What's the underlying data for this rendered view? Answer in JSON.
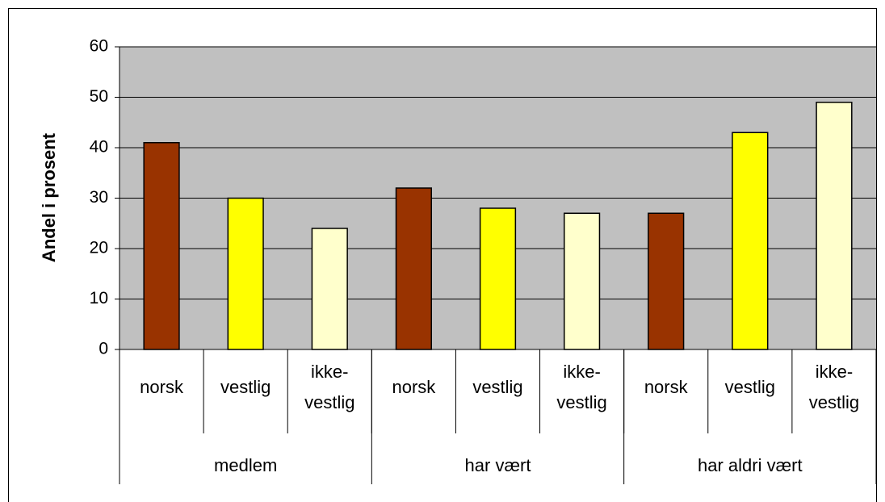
{
  "chart_data": {
    "type": "bar",
    "y_label": "Andel i prosent",
    "categories": [
      "norsk",
      "vestlig",
      "ikke-vestlig",
      "norsk",
      "vestlig",
      "ikke-vestlig",
      "norsk",
      "vestlig",
      "ikke-vestlig"
    ],
    "groups": [
      "medlem",
      "har vært",
      "har aldri vært"
    ],
    "values": [
      41,
      30,
      24,
      32,
      28,
      27,
      27,
      43,
      49
    ],
    "colors": [
      "#993300",
      "#ffff00",
      "#ffffcc",
      "#993300",
      "#ffff00",
      "#ffffcc",
      "#993300",
      "#ffff00",
      "#ffffcc"
    ],
    "ylim": [
      0,
      60
    ],
    "yticks": [
      0,
      10,
      20,
      30,
      40,
      50,
      60
    ],
    "grid": true
  }
}
